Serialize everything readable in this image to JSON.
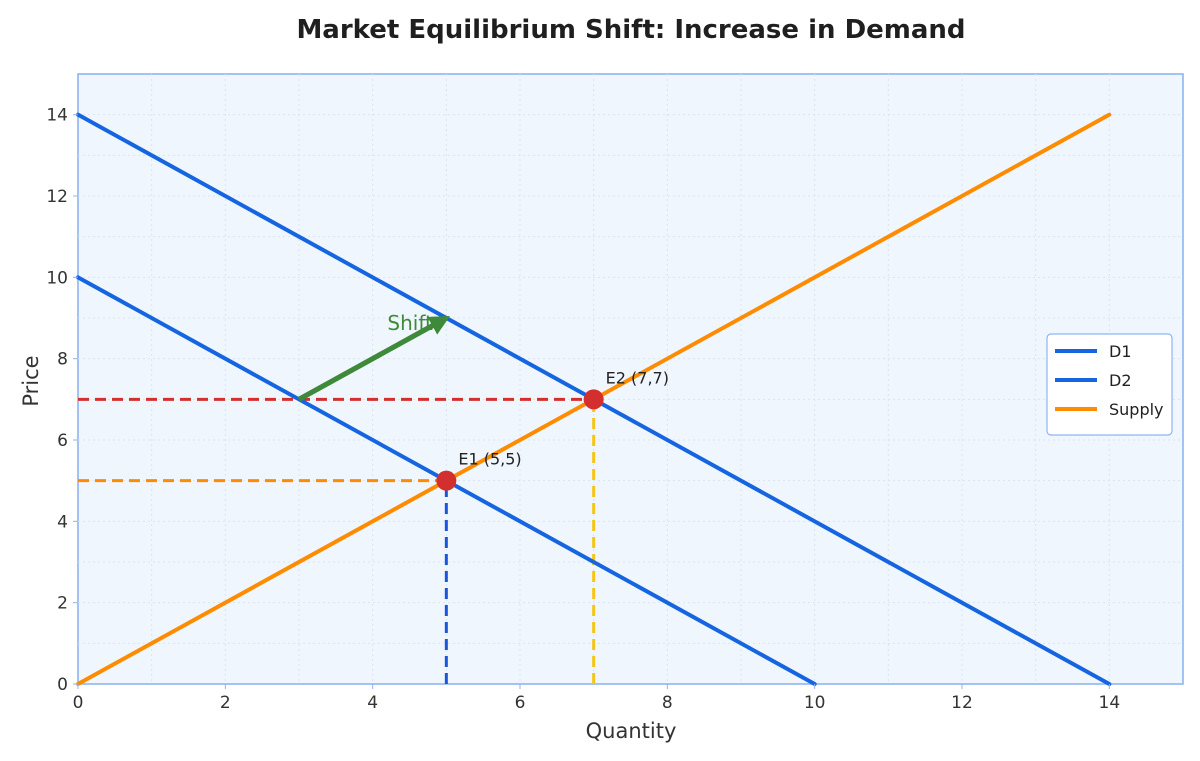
{
  "chart_data": {
    "type": "line",
    "title": "Market Equilibrium Shift: Increase in Demand",
    "xlabel": "Quantity",
    "ylabel": "Price",
    "xlim": [
      0,
      15
    ],
    "ylim": [
      0,
      15
    ],
    "xticks": [
      0,
      2,
      4,
      6,
      8,
      10,
      12,
      14
    ],
    "yticks": [
      0,
      2,
      4,
      6,
      8,
      10,
      12,
      14
    ],
    "grid": true,
    "legend_position": "right",
    "series": [
      {
        "name": "D1",
        "color": "#1565e0",
        "points": [
          [
            0,
            10
          ],
          [
            10,
            0
          ]
        ]
      },
      {
        "name": "D2",
        "color": "#1565e0",
        "points": [
          [
            0,
            14
          ],
          [
            14,
            0
          ]
        ]
      },
      {
        "name": "Supply",
        "color": "#ff8c00",
        "points": [
          [
            0,
            0
          ],
          [
            14,
            14
          ]
        ]
      }
    ],
    "equilibria": [
      {
        "label": "E1 (5,5)",
        "x": 5,
        "y": 5,
        "color": "#d32f2f"
      },
      {
        "label": "E2 (7,7)",
        "x": 7,
        "y": 7,
        "color": "#d32f2f"
      }
    ],
    "guides": [
      {
        "kind": "h",
        "y": 5,
        "from": 0,
        "to": 5,
        "color": "#ff8c00"
      },
      {
        "kind": "v",
        "x": 5,
        "from": 0,
        "to": 5,
        "color": "#1a56db"
      },
      {
        "kind": "h",
        "y": 7,
        "from": 0,
        "to": 7,
        "color": "#d32f2f"
      },
      {
        "kind": "v",
        "x": 7,
        "from": 0,
        "to": 7,
        "color": "#f5c518"
      }
    ],
    "shift_arrow": {
      "label": "Shift",
      "from": [
        3,
        7
      ],
      "to": [
        5,
        9
      ],
      "color": "#3f8a3a"
    }
  }
}
